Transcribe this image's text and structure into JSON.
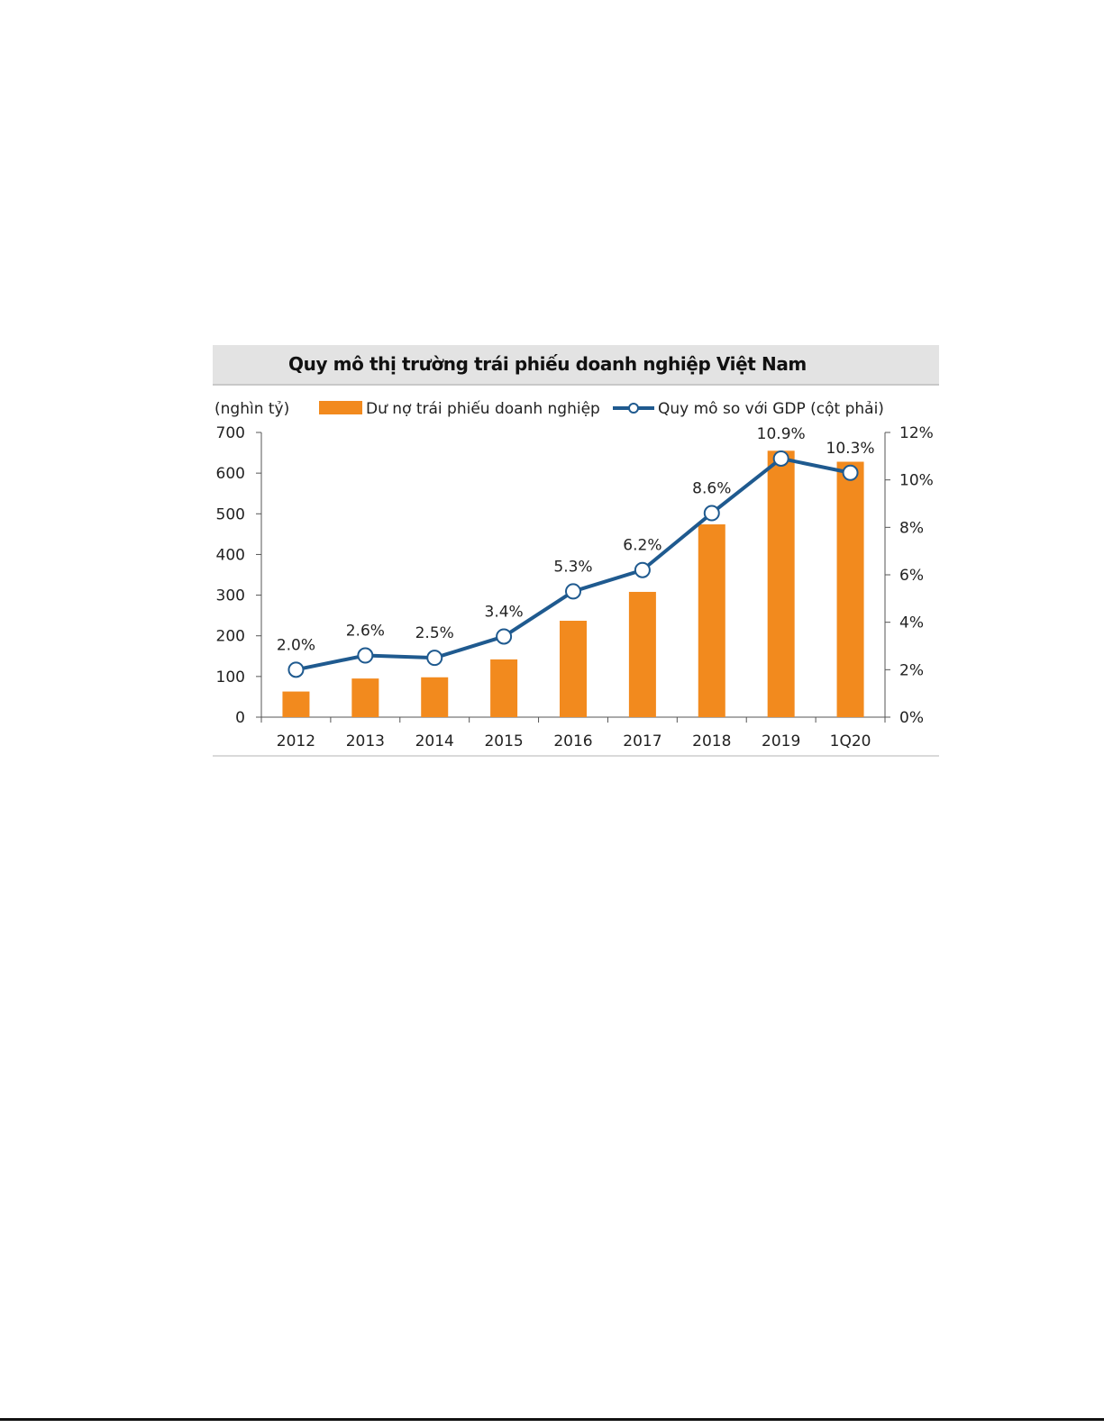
{
  "chart_data": {
    "type": "bar",
    "title": "Quy mô thị trường trái phiếu doanh nghiệp Việt Nam",
    "ylabel": "(nghìn tỷ)",
    "categories": [
      "2012",
      "2013",
      "2014",
      "2015",
      "2016",
      "2017",
      "2018",
      "2019",
      "1Q20"
    ],
    "ylim": [
      0,
      700
    ],
    "y_ticks": [
      "0",
      "100",
      "200",
      "300",
      "400",
      "500",
      "600",
      "700"
    ],
    "y2lim": [
      0,
      12
    ],
    "y2_ticks": [
      "0%",
      "2%",
      "4%",
      "6%",
      "8%",
      "10%",
      "12%"
    ],
    "grid": false,
    "legend_position": "top",
    "series": [
      {
        "name": "Dư nợ trái phiếu doanh nghiệp",
        "type": "bar",
        "axis": "left",
        "color": "#f28a1e",
        "values": [
          63,
          95,
          98,
          142,
          237,
          308,
          474,
          655,
          628
        ]
      },
      {
        "name": "Quy mô so với GDP (cột phải)",
        "type": "line",
        "axis": "right",
        "color": "#1f5a8f",
        "values": [
          2.0,
          2.6,
          2.5,
          3.4,
          5.3,
          6.2,
          8.6,
          10.9,
          10.3
        ],
        "labels": [
          "2.0%",
          "2.6%",
          "2.5%",
          "3.4%",
          "5.3%",
          "6.2%",
          "8.6%",
          "10.9%",
          "10.3%"
        ]
      }
    ]
  }
}
